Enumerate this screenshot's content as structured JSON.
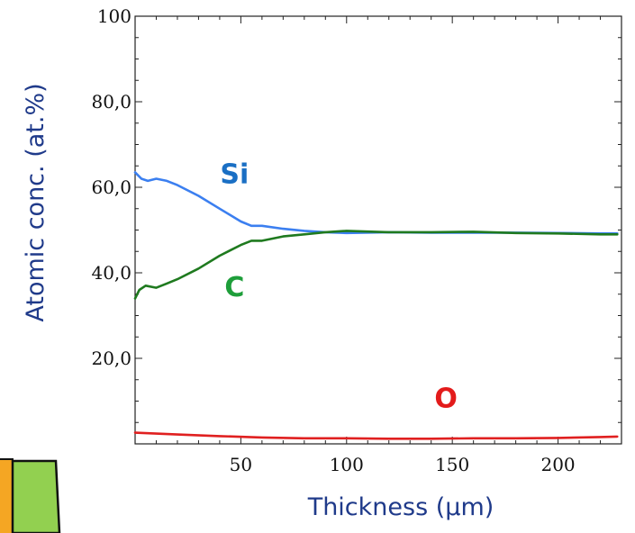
{
  "chart_data": {
    "type": "line",
    "title": "",
    "xlabel": "Thickness (μm)",
    "ylabel": "Atomic conc. (at.%)",
    "xlim": [
      0,
      230
    ],
    "ylim": [
      0,
      100
    ],
    "x_ticks": [
      50,
      100,
      150,
      200
    ],
    "x_tick_labels": [
      "50",
      "100",
      "150",
      "200"
    ],
    "y_ticks": [
      20,
      40,
      60,
      80,
      100
    ],
    "y_tick_labels": [
      "20,0",
      "40,0",
      "60,0",
      "80,0",
      "100"
    ],
    "grid": false,
    "legend": "labels on lines",
    "series": [
      {
        "name": "Si",
        "color": "#3b7ff0",
        "label_color": "#1a6fc4",
        "x": [
          0,
          3,
          6,
          10,
          15,
          20,
          30,
          40,
          50,
          55,
          60,
          70,
          80,
          90,
          100,
          120,
          140,
          160,
          180,
          200,
          220,
          228
        ],
        "y": [
          63.5,
          62,
          61.5,
          62,
          61.5,
          60.5,
          58,
          55,
          52,
          51,
          51,
          50.3,
          49.8,
          49.5,
          49.3,
          49.5,
          49.4,
          49.4,
          49.4,
          49.3,
          49.2,
          49.2
        ]
      },
      {
        "name": "C",
        "color": "#1f7a1f",
        "label_color": "#1e9e3a",
        "x": [
          0,
          2,
          5,
          10,
          15,
          20,
          30,
          40,
          50,
          55,
          60,
          70,
          80,
          90,
          100,
          120,
          140,
          160,
          180,
          200,
          220,
          228
        ],
        "y": [
          34,
          36,
          37,
          36.5,
          37.5,
          38.5,
          41,
          44,
          46.5,
          47.5,
          47.5,
          48.5,
          49,
          49.5,
          49.8,
          49.5,
          49.5,
          49.6,
          49.3,
          49.2,
          49,
          49
        ]
      },
      {
        "name": "O",
        "color": "#e02020",
        "label_color": "#e31b1b",
        "x": [
          0,
          10,
          20,
          40,
          60,
          80,
          100,
          120,
          140,
          160,
          180,
          200,
          220,
          228
        ],
        "y": [
          2.6,
          2.4,
          2.2,
          1.8,
          1.5,
          1.3,
          1.3,
          1.2,
          1.2,
          1.3,
          1.3,
          1.4,
          1.6,
          1.7
        ]
      }
    ],
    "annotations": [
      {
        "text": "Si",
        "x": 47,
        "y": 61
      },
      {
        "text": "C",
        "x": 47,
        "y": 34.5
      },
      {
        "text": "O",
        "x": 147,
        "y": 8.5
      }
    ]
  }
}
